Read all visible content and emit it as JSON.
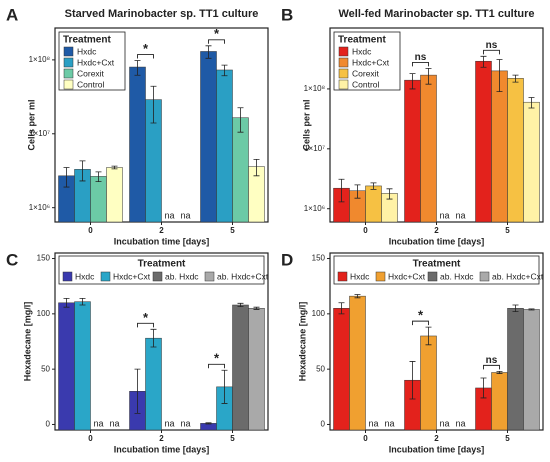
{
  "chart_data": [
    {
      "type": "bar",
      "panel": "A",
      "title": "Starved Marinobacter sp. TT1 culture",
      "xlabel": "Incubation time [days]",
      "ylabel": "Cells per ml",
      "categories": [
        "0",
        "2",
        "5"
      ],
      "log_scale": true,
      "ylim": [
        640000,
        270000000
      ],
      "yticks": [
        {
          "value": 1000000,
          "label": "1×10⁶"
        },
        {
          "value": 10000000,
          "label": "1×10⁷"
        },
        {
          "value": 100000000,
          "label": "1×10⁸"
        }
      ],
      "legend": "upper left",
      "legend_title": "Treatment",
      "series": [
        {
          "name": "Hxdc",
          "color": "#1f5aa6",
          "values": [
            2700000,
            80000000,
            130000000
          ],
          "errors": [
            800000,
            18000000,
            25000000
          ]
        },
        {
          "name": "Hxdc+Cxt",
          "color": "#2a9fc4",
          "values": [
            3300000,
            29000000,
            73000000
          ],
          "errors": [
            1000000,
            15000000,
            12000000
          ]
        },
        {
          "name": "Corexit",
          "color": "#6ccaa6",
          "values": [
            2650000,
            null,
            16500000
          ],
          "errors": [
            400000,
            null,
            6000000
          ],
          "value_labels": [
            null,
            "na",
            null
          ]
        },
        {
          "name": "Control",
          "color": "#ffffc2",
          "values": [
            3500000,
            null,
            3600000
          ],
          "errors": [
            150000,
            null,
            900000
          ],
          "value_labels": [
            null,
            "na",
            null
          ]
        }
      ],
      "significance": [
        {
          "category": 1,
          "series": [
            0,
            1
          ],
          "label": "*"
        },
        {
          "category": 2,
          "series": [
            0,
            1
          ],
          "label": "*"
        }
      ]
    },
    {
      "type": "bar",
      "panel": "B",
      "title": "Well-fed Marinobacter sp. TT1 culture",
      "xlabel": "Incubation time [days]",
      "ylabel": "Cells per ml",
      "categories": [
        "0",
        "2",
        "5"
      ],
      "log_scale": true,
      "ylim": [
        600000,
        1040000000
      ],
      "yticks": [
        {
          "value": 1000000,
          "label": "1×10⁶"
        },
        {
          "value": 10000000,
          "label": "1×10⁷"
        },
        {
          "value": 100000000,
          "label": "1×10⁸"
        }
      ],
      "legend": "upper left",
      "legend_title": "Treatment",
      "series": [
        {
          "name": "Hxdc",
          "color": "#e3221c",
          "values": [
            2200000,
            140000000,
            290000000
          ],
          "errors": [
            900000,
            40000000,
            60000000
          ]
        },
        {
          "name": "Hxdc+Cxt",
          "color": "#f0892e",
          "values": [
            2000000,
            170000000,
            200000000
          ],
          "errors": [
            500000,
            50000000,
            110000000
          ]
        },
        {
          "name": "Corexit",
          "color": "#f6c143",
          "values": [
            2400000,
            null,
            150000000
          ],
          "errors": [
            300000,
            null,
            20000000
          ],
          "value_labels": [
            null,
            "na",
            null
          ]
        },
        {
          "name": "Control",
          "color": "#fff2a6",
          "values": [
            1800000,
            null,
            60000000
          ],
          "errors": [
            350000,
            null,
            12000000
          ],
          "value_labels": [
            null,
            "na",
            null
          ]
        }
      ],
      "significance": [
        {
          "category": 1,
          "series": [
            0,
            1
          ],
          "label": "ns"
        },
        {
          "category": 2,
          "series": [
            0,
            1
          ],
          "label": "ns"
        }
      ]
    },
    {
      "type": "bar",
      "panel": "C",
      "xlabel": "Incubation time [days]",
      "ylabel": "Hexadecane [mg/l]",
      "categories": [
        "0",
        "2",
        "5"
      ],
      "log_scale": false,
      "ylim": [
        -5,
        155
      ],
      "yticks": [
        0,
        50,
        100,
        150
      ],
      "legend": "top",
      "legend_title": "Treatment",
      "series": [
        {
          "name": "Hxdc",
          "color": "#3a3aae",
          "values": [
            110,
            30,
            1
          ],
          "errors": [
            4,
            20,
            0.5
          ]
        },
        {
          "name": "Hxdc+Cxt",
          "color": "#2aa6c8",
          "values": [
            111,
            78,
            34
          ],
          "errors": [
            3,
            8,
            15
          ]
        },
        {
          "name": "ab. Hxdc",
          "color": "#6b6b6b",
          "values": [
            null,
            null,
            108
          ],
          "errors": [
            null,
            null,
            1.5
          ],
          "value_labels": [
            "na",
            "na",
            null
          ]
        },
        {
          "name": "ab. Hxdc+Cxt",
          "color": "#a9a9a9",
          "values": [
            null,
            null,
            105
          ],
          "errors": [
            null,
            null,
            1
          ],
          "value_labels": [
            "na",
            "na",
            null
          ]
        }
      ],
      "significance": [
        {
          "category": 1,
          "series": [
            0,
            1
          ],
          "label": "*"
        },
        {
          "category": 2,
          "series": [
            0,
            1
          ],
          "label": "*"
        }
      ]
    },
    {
      "type": "bar",
      "panel": "D",
      "xlabel": "Incubation time [days]",
      "ylabel": "Hexadecane [mg/l]",
      "categories": [
        "0",
        "2",
        "5"
      ],
      "log_scale": false,
      "ylim": [
        -5,
        155
      ],
      "yticks": [
        0,
        50,
        100,
        150
      ],
      "legend": "top",
      "legend_title": "Treatment",
      "series": [
        {
          "name": "Hxdc",
          "color": "#e3221c",
          "values": [
            105,
            40,
            33
          ],
          "errors": [
            5,
            17,
            9
          ]
        },
        {
          "name": "Hxdc+Cxt",
          "color": "#f0a030",
          "values": [
            116,
            80,
            47
          ],
          "errors": [
            1.5,
            8,
            1
          ]
        },
        {
          "name": "ab. Hxdc",
          "color": "#6b6b6b",
          "values": [
            null,
            null,
            105
          ],
          "errors": [
            null,
            null,
            3
          ],
          "value_labels": [
            "na",
            "na",
            null
          ]
        },
        {
          "name": "ab. Hxdc+Cxt",
          "color": "#a9a9a9",
          "values": [
            null,
            null,
            104
          ],
          "errors": [
            null,
            null,
            0.5
          ],
          "value_labels": [
            "na",
            "na",
            null
          ]
        }
      ],
      "significance": [
        {
          "category": 1,
          "series": [
            0,
            1
          ],
          "label": "*"
        },
        {
          "category": 2,
          "series": [
            0,
            1
          ],
          "label": "ns"
        }
      ]
    }
  ]
}
